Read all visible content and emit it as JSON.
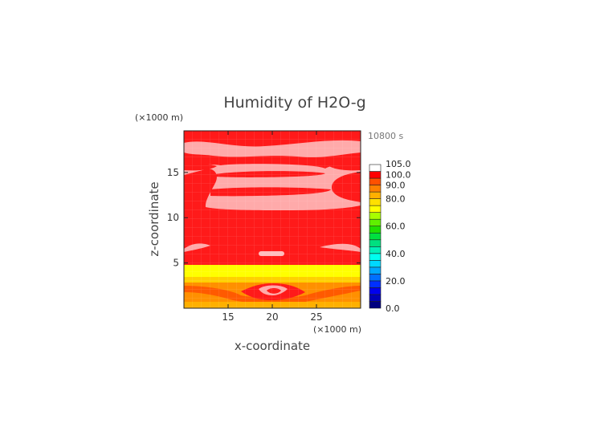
{
  "chart_data": {
    "type": "heatmap",
    "title": "Humidity of H2O-g",
    "time_label": "10800 s",
    "xlabel": "x-coordinate",
    "ylabel": "z-coordinate",
    "x_unit": "(×1000 m)",
    "y_unit": "(×1000 m)",
    "xlim": [
      10,
      30
    ],
    "ylim": [
      0,
      19.6
    ],
    "x_ticks": [
      15,
      20,
      25
    ],
    "y_ticks": [
      5,
      10,
      15
    ],
    "colorbar": {
      "range": [
        0,
        105
      ],
      "levels": [
        0,
        5,
        10,
        15,
        20,
        25,
        30,
        35,
        40,
        45,
        50,
        55,
        60,
        65,
        70,
        75,
        80,
        85,
        90,
        95,
        100,
        105
      ],
      "colors": [
        "#000080",
        "#0000b8",
        "#0000ee",
        "#0030ff",
        "#0070ff",
        "#00a8ff",
        "#00d8ff",
        "#00ffee",
        "#00f0b8",
        "#00e080",
        "#00e040",
        "#20e000",
        "#60f000",
        "#a8ff00",
        "#ffff00",
        "#ffe000",
        "#ffb000",
        "#ff8000",
        "#ff5000",
        "#ff0000",
        "#ffffff"
      ],
      "tick_labels": [
        "0.0",
        "20.0",
        "40.0",
        "60.0",
        "80.0",
        "90.0",
        "100.0",
        "105.0"
      ]
    },
    "regions": [
      {
        "name": "lower-orange-band",
        "z": [
          0,
          1.5
        ],
        "value_class": "80-90"
      },
      {
        "name": "orange-band",
        "z": [
          1.5,
          2.5
        ],
        "value_class": "85-90"
      },
      {
        "name": "yellow-band",
        "z": [
          2.5,
          4.8
        ],
        "value_class": "70-80"
      },
      {
        "name": "upper-red-zone",
        "z": [
          4.8,
          19.6
        ],
        "value_class": "95-100"
      },
      {
        "name": "pink-patches",
        "value_class": "100-105"
      }
    ]
  }
}
